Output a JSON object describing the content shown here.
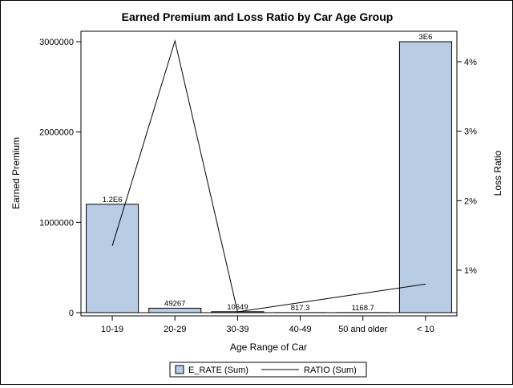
{
  "chart_data": {
    "type": "bar",
    "title": "Earned Premium and Loss Ratio by Car Age Group",
    "xlabel": "Age Range of Car",
    "ylabel": "Earned Premium",
    "y2label": "Loss Ratio",
    "categories": [
      "10-19",
      "20-29",
      "30-39",
      "40-49",
      "50 and older",
      "< 10"
    ],
    "series": [
      {
        "name": "E_RATE (Sum)",
        "type": "bar",
        "axis": "left",
        "values": [
          1200000,
          49267,
          10649,
          817.3,
          1168.7,
          3000000
        ],
        "labels": [
          "1.2E6",
          "49267",
          "10649",
          "817.3",
          "1168.7",
          "3E6"
        ],
        "color": "#b8cce4"
      },
      {
        "name": "RATIO (Sum)",
        "type": "line",
        "axis": "right",
        "values": [
          1.35,
          4.3,
          0.4,
          null,
          null,
          0.8
        ],
        "color": "#000000"
      }
    ],
    "ylim": [
      0,
      3000000
    ],
    "y_ticks": [
      0,
      1000000,
      2000000,
      3000000
    ],
    "y_tick_labels": [
      "0",
      "1000000",
      "2000000",
      "3000000"
    ],
    "y2lim": [
      0.4,
      4.3
    ],
    "y2_ticks": [
      1,
      2,
      3,
      4
    ],
    "y2_tick_labels": [
      "1%",
      "2%",
      "3%",
      "4%"
    ],
    "grid": false,
    "legend": "bottom"
  }
}
